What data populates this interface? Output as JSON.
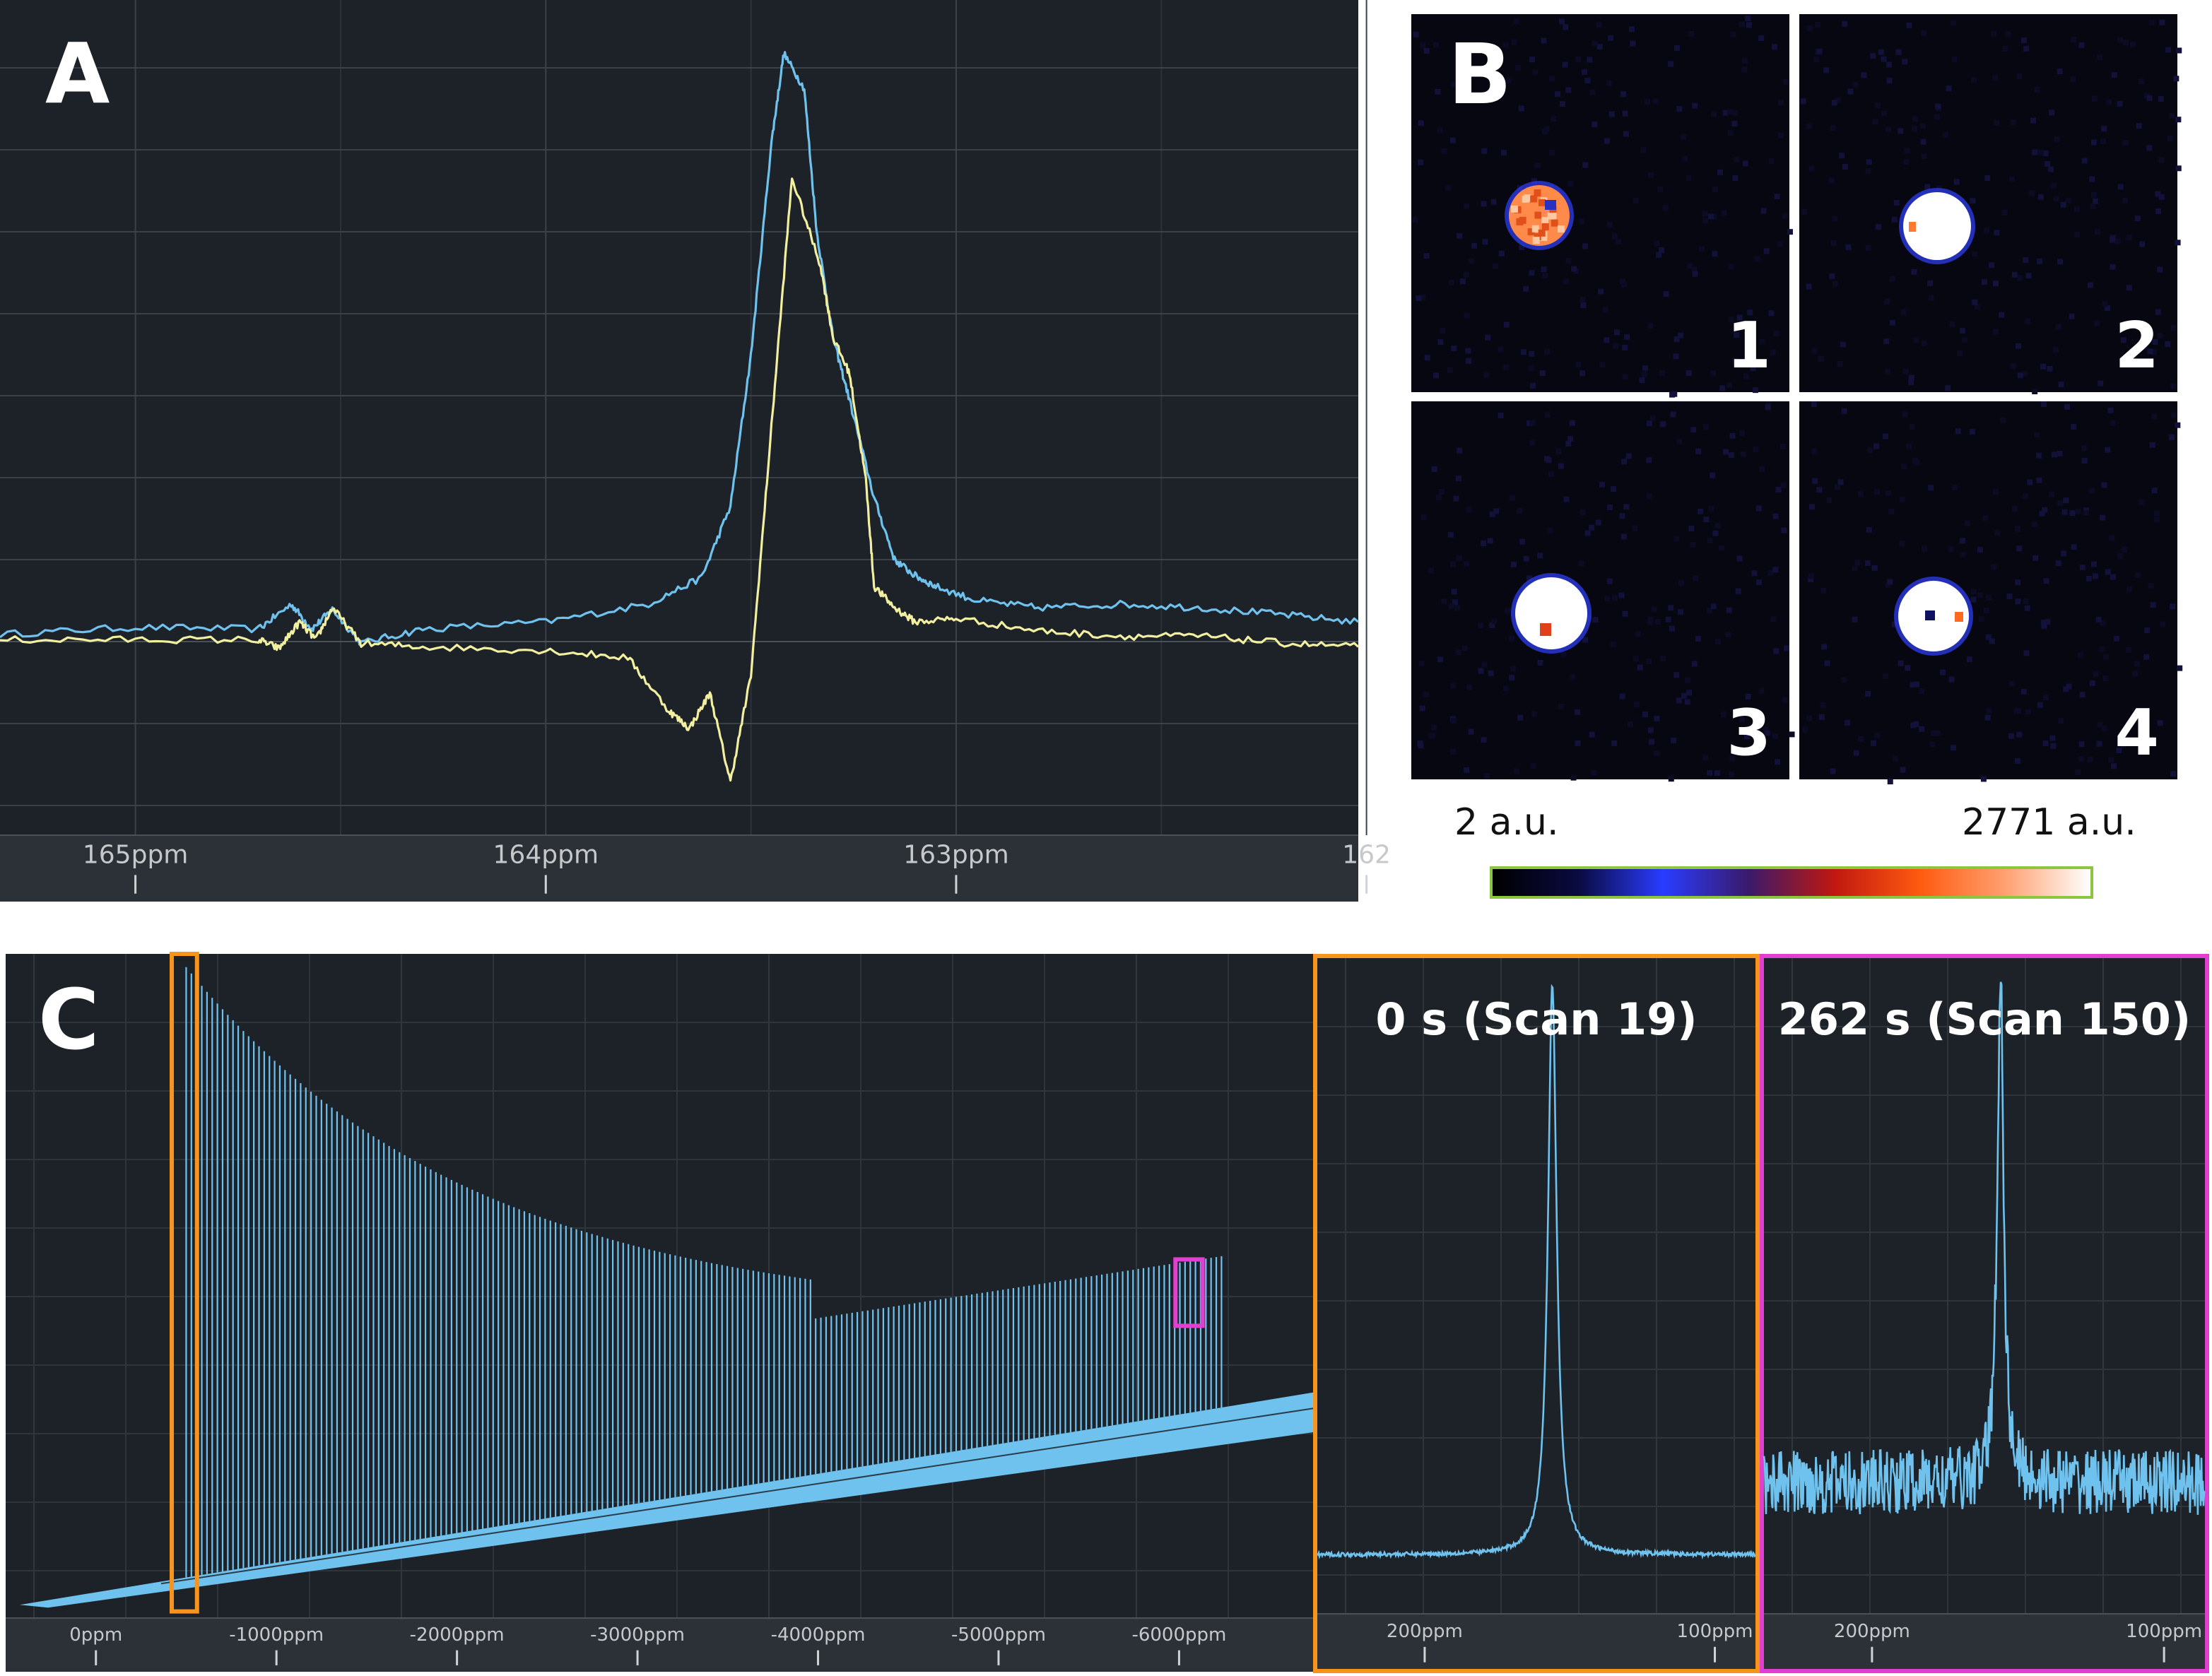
{
  "panels": {
    "a_letter": "A",
    "b_letter": "B",
    "c_letter": "C"
  },
  "panel_b": {
    "images": [
      {
        "label": "1",
        "look": "orange-speckled"
      },
      {
        "label": "2",
        "look": "white-saturated"
      },
      {
        "label": "3",
        "look": "white-red-spot"
      },
      {
        "label": "4",
        "look": "white-blue-spot"
      }
    ],
    "colorbar": {
      "min_label": "2 a.u.",
      "max_label": "2771 a.u.",
      "colors": [
        "#000000",
        "#0a0a40",
        "#2a3cff",
        "#3a1a6a",
        "#c01810",
        "#ff5a10",
        "#ffa070",
        "#ffffff"
      ],
      "frame_color": "#8cc63f"
    }
  },
  "colors": {
    "background": "#1c2227",
    "grid": "#3a4248",
    "axis_bar": "#2b3136",
    "blue_trace": "#6fc1ee",
    "yellow_trace": "#f2f0a0",
    "orange_box": "#f7941d",
    "magenta_box": "#e040d0"
  },
  "chart_data": [
    {
      "id": "panel-a",
      "type": "line",
      "xlabel": "",
      "ylabel": "",
      "x_unit": "ppm",
      "xlim": [
        165.33,
        162.02
      ],
      "x_ticks": [
        165,
        164,
        163,
        162
      ],
      "tick_labels": [
        "165ppm",
        "164ppm",
        "163ppm",
        "162"
      ],
      "ylim": [
        -1.1,
        3.6
      ],
      "grid": true,
      "series": [
        {
          "color": "#6fc1ee",
          "x": [
            165.33,
            165.0,
            164.7,
            164.62,
            164.57,
            164.52,
            164.45,
            164.3,
            164.0,
            163.75,
            163.62,
            163.55,
            163.5,
            163.45,
            163.42,
            163.37,
            163.34,
            163.3,
            163.26,
            163.2,
            163.15,
            163.1,
            163.05,
            162.95,
            162.8,
            162.6,
            162.4,
            162.2,
            162.02
          ],
          "y": [
            0.03,
            0.07,
            0.06,
            0.2,
            0.06,
            0.17,
            -0.02,
            0.06,
            0.1,
            0.2,
            0.35,
            0.75,
            1.6,
            2.8,
            3.3,
            3.1,
            2.3,
            1.7,
            1.35,
            0.8,
            0.45,
            0.36,
            0.3,
            0.22,
            0.18,
            0.2,
            0.18,
            0.14,
            0.1
          ]
        },
        {
          "color": "#f2f0a0",
          "x": [
            165.33,
            165.0,
            164.7,
            164.65,
            164.6,
            164.56,
            164.52,
            164.45,
            164.3,
            164.0,
            163.8,
            163.7,
            163.65,
            163.6,
            163.55,
            163.5,
            163.45,
            163.4,
            163.33,
            163.3,
            163.26,
            163.22,
            163.2,
            163.15,
            163.1,
            163.0,
            162.8,
            162.6,
            162.4,
            162.2,
            162.02
          ],
          "y": [
            0.0,
            0.0,
            0.0,
            -0.05,
            0.1,
            0.0,
            0.18,
            -0.02,
            -0.04,
            -0.06,
            -0.1,
            -0.4,
            -0.5,
            -0.3,
            -0.8,
            -0.2,
            1.2,
            2.6,
            2.1,
            1.7,
            1.5,
            0.9,
            0.3,
            0.18,
            0.1,
            0.12,
            0.05,
            0.02,
            0.02,
            -0.02,
            -0.04
          ]
        }
      ]
    },
    {
      "id": "panel-c-main",
      "type": "bar",
      "xlabel": "",
      "ylabel": "",
      "x_unit": "ppm",
      "xlim": [
        500,
        -6750
      ],
      "x_ticks": [
        0,
        -1000,
        -2000,
        -3000,
        -4000,
        -5000,
        -6000
      ],
      "tick_labels": [
        "0ppm",
        "-1000ppm",
        "-2000ppm",
        "-3000ppm",
        "-4000ppm",
        "-5000ppm",
        "-6000ppm"
      ],
      "ylim": [
        0,
        1
      ],
      "grid": true,
      "scan_count": 200,
      "first_scan": 19,
      "baseline": {
        "start": [
          -0.75,
          0.02
        ],
        "end": [
          0.55,
          0.28
        ],
        "band": 0.06
      },
      "peak_envelope": {
        "peak_height": 0.98,
        "decay": 55,
        "floor_height": 0.45,
        "floor_scan": 120
      },
      "highlight_boxes": [
        {
          "color": "#f7941d",
          "x_range": [
            -420,
            -560
          ],
          "y_range": [
            0.01,
            1.0
          ]
        },
        {
          "color": "#e040d0",
          "x_range": [
            -5980,
            -6130
          ],
          "y_range": [
            0.44,
            0.54
          ]
        }
      ]
    },
    {
      "id": "panel-c-inset-1",
      "type": "line",
      "title": "0 s (Scan 19)",
      "x_unit": "ppm",
      "xlim": [
        237,
        86
      ],
      "x_ticks": [
        200,
        100
      ],
      "tick_labels": [
        "200ppm",
        "100ppm"
      ],
      "ylim": [
        0,
        1
      ],
      "peak": {
        "position": 156,
        "height": 0.96,
        "width": 1.8,
        "baseline": 0.09
      },
      "noise": 0.003,
      "frame_color": "#f7941d"
    },
    {
      "id": "panel-c-inset-2",
      "type": "line",
      "title": "262 s (Scan 150)",
      "x_unit": "ppm",
      "xlim": [
        237,
        86
      ],
      "x_ticks": [
        200,
        100
      ],
      "tick_labels": [
        "200ppm",
        "100ppm"
      ],
      "ylim": [
        0,
        1
      ],
      "peak": {
        "position": 156,
        "height": 0.98,
        "width": 1.3,
        "baseline": 0.2
      },
      "noise": 0.05,
      "frame_color": "#e040d0"
    }
  ]
}
